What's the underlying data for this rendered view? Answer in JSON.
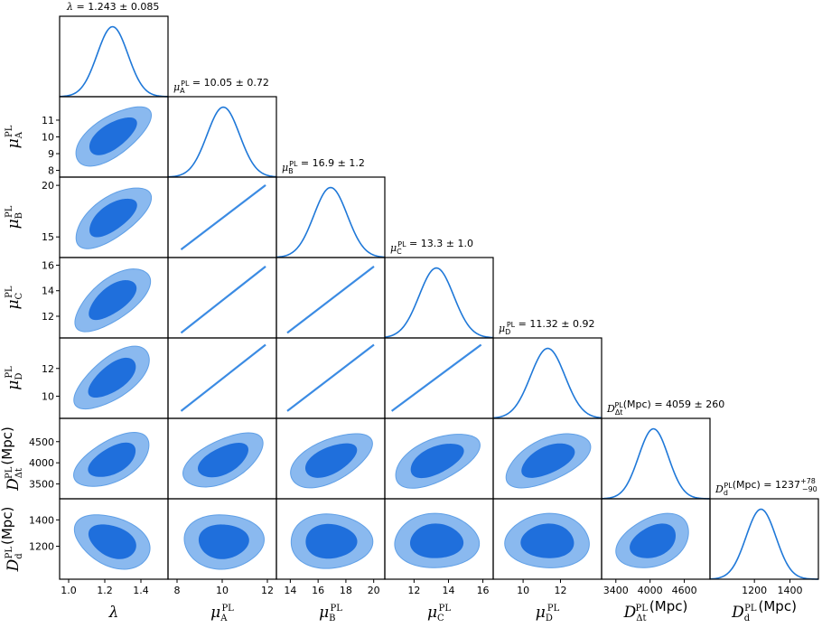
{
  "chart_data": {
    "type": "corner",
    "parameters": [
      {
        "key": "lambda",
        "symbol": "λ",
        "sup": "",
        "sub": "",
        "unit": "",
        "mean": 1.243,
        "sigma": 0.085,
        "title": "λ = 1.243 ± 0.085",
        "range": [
          0.95,
          1.55
        ],
        "ticks": [
          1.0,
          1.2,
          1.4
        ],
        "tick_labels": [
          "1.0",
          "1.2",
          "1.4"
        ]
      },
      {
        "key": "muA",
        "symbol": "μ",
        "sup": "PL",
        "sub": "A",
        "unit": "",
        "mean": 10.05,
        "sigma": 0.72,
        "title": "μA^PL = 10.05 ± 0.72",
        "range": [
          7.6,
          12.4
        ],
        "ticks": [
          8,
          9,
          10,
          11
        ],
        "tick_labels": [
          "8",
          "9",
          "10",
          "11"
        ],
        "x_ticks": [
          8,
          10,
          12
        ],
        "x_tick_labels": [
          "8",
          "10",
          "12"
        ]
      },
      {
        "key": "muB",
        "symbol": "μ",
        "sup": "PL",
        "sub": "B",
        "unit": "",
        "mean": 16.9,
        "sigma": 1.2,
        "title": "μB^PL = 16.9 ± 1.2",
        "range": [
          13.0,
          20.8
        ],
        "ticks": [
          15,
          20
        ],
        "tick_labels": [
          "15",
          "20"
        ],
        "x_ticks": [
          14,
          16,
          18,
          20
        ],
        "x_tick_labels": [
          "14",
          "16",
          "18",
          "20"
        ]
      },
      {
        "key": "muC",
        "symbol": "μ",
        "sup": "PL",
        "sub": "C",
        "unit": "",
        "mean": 13.3,
        "sigma": 1.0,
        "title": "μC^PL = 13.3 ± 1.0",
        "range": [
          10.3,
          16.6
        ],
        "ticks": [
          12,
          14,
          16
        ],
        "tick_labels": [
          "12",
          "14",
          "16"
        ]
      },
      {
        "key": "muD",
        "symbol": "μ",
        "sup": "PL",
        "sub": "D",
        "unit": "",
        "mean": 11.32,
        "sigma": 0.92,
        "title": "μD^PL = 11.32 ± 0.92",
        "range": [
          8.4,
          14.2
        ],
        "ticks": [
          10,
          12
        ],
        "tick_labels": [
          "10",
          "12"
        ]
      },
      {
        "key": "Ddt",
        "symbol": "D",
        "sup": "PL",
        "sub": "Δt",
        "unit": "(Mpc)",
        "mean": 4059,
        "sigma": 260,
        "title": "DΔt^PL(Mpc) = 4059 ± 260",
        "range": [
          3150,
          5050
        ],
        "ticks": [
          3500,
          4000,
          4500
        ],
        "tick_labels": [
          "3500",
          "4000",
          "4500"
        ],
        "x_ticks": [
          3400,
          4000,
          4600
        ],
        "x_tick_labels": [
          "3400",
          "4000",
          "4600"
        ]
      },
      {
        "key": "Dd",
        "symbol": "D",
        "sup": "PL",
        "sub": "d",
        "unit": "(Mpc)",
        "mean": 1237,
        "sigma": 84,
        "title": "Dd^PL(Mpc) = 1237 +78 −90",
        "range": [
          950,
          1560
        ],
        "ticks": [
          1200,
          1400
        ],
        "tick_labels": [
          "1200",
          "1400"
        ]
      }
    ],
    "titles": {
      "lambda": {
        "prefix": "λ",
        "sup": "",
        "sub": "",
        "text": " = 1.243 ± 0.085"
      },
      "muA": {
        "prefix": "μ",
        "sup": "PL",
        "sub": "A",
        "text": " = 10.05 ± 0.72"
      },
      "muB": {
        "prefix": "μ",
        "sup": "PL",
        "sub": "B",
        "text": " = 16.9 ± 1.2"
      },
      "muC": {
        "prefix": "μ",
        "sup": "PL",
        "sub": "C",
        "text": " = 13.3 ± 1.0"
      },
      "muD": {
        "prefix": "μ",
        "sup": "PL",
        "sub": "D",
        "text": " = 11.32 ± 0.92"
      },
      "Ddt": {
        "prefix": "D",
        "sup": "PL",
        "sub": "Δt",
        "text": "(Mpc) = 4059 ± 260"
      },
      "Dd": {
        "prefix": "D",
        "sup": "PL",
        "sub": "d",
        "text": "(Mpc) = 1237",
        "up": "+78",
        "down": "−90"
      }
    },
    "correlations": {
      "lambda-muA": 0.65,
      "lambda-muB": 0.65,
      "lambda-muC": 0.65,
      "lambda-muD": 0.65,
      "lambda-Ddt": 0.55,
      "lambda-Dd": -0.35,
      "muA-muB": 1.0,
      "muA-muC": 1.0,
      "muA-muD": 1.0,
      "muA-Ddt": 0.55,
      "muA-Dd": 0.0,
      "muB-muC": 1.0,
      "muB-muD": 1.0,
      "muB-Ddt": 0.55,
      "muB-Dd": 0.0,
      "muC-muD": 1.0,
      "muC-Ddt": 0.55,
      "muC-Dd": 0.0,
      "muD-Ddt": 0.55,
      "muD-Dd": 0.0,
      "Ddt-Dd": 0.35
    },
    "contour_levels": [
      "68%",
      "95%"
    ],
    "colors": {
      "line": "#1f78d8",
      "inner": "#1f6fdc",
      "outer": "#8ab9ef"
    }
  }
}
